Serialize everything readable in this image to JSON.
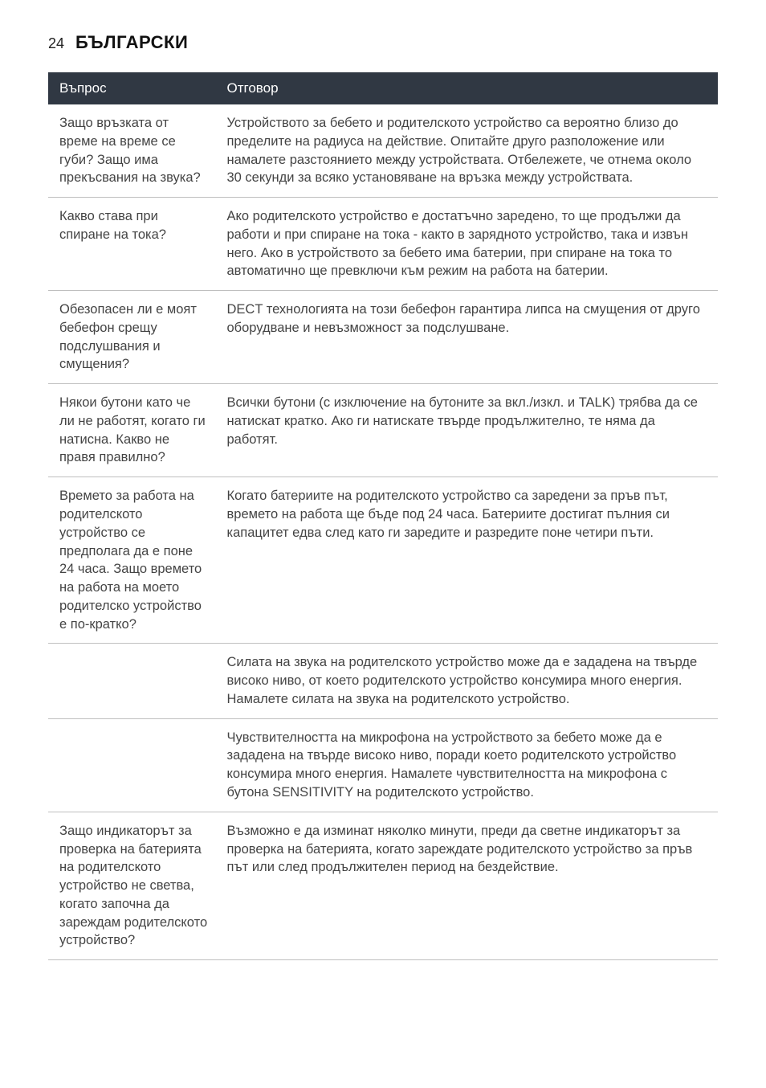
{
  "header": {
    "page_number": "24",
    "title": "БЪЛГАРСКИ"
  },
  "table": {
    "columns": [
      "Въпрос",
      "Отговор"
    ],
    "rows": [
      {
        "q": "Защо връзката от време на време се губи? Защо има прекъсвания на звука?",
        "a": "Устройството за бебето и родителското устройство са вероятно близо до пределите на радиуса на действие. Опитайте друго разположение или намалете разстоянието между устройствата. Отбележете, че отнема около 30 секунди за всяко установяване на връзка между устройствата."
      },
      {
        "q": "Какво става при спиране на тока?",
        "a": "Ако родителското устройство е достатъчно заредено, то ще продължи да работи и при спиране на тока - както в зарядното устройство, така и извън него. Ако в устройството за бебето има батерии, при спиране на тока то автоматично ще превключи към режим на работа на батерии."
      },
      {
        "q": "Обезопасен ли е моят бебефон срещу подслушвания и смущения?",
        "a": "DECT технологията на този бебефон гарантира липса на смущения от друго оборудване и невъзможност за подслушване."
      },
      {
        "q": "Някои бутони като че ли не работят, когато ги натисна. Какво не правя правилно?",
        "a": "Всички бутони (с изключение на бутоните за вкл./изкл. и TALK) трябва да се натискат кратко. Ако ги натискате твърде продължително, те няма да работят."
      },
      {
        "q": "Времето за работа на родителското устройство се предполага да е поне 24 часа. Защо времето на работа на моето родителско устройство е по-кратко?",
        "a": "Когато батериите на родителското устройство са заредени за пръв път, времето на работа ще бъде под 24 часа. Батериите достигат пълния си капацитет едва след като ги заредите и разредите поне четири пъти."
      },
      {
        "q": "",
        "a": "Силата на звука на родителското устройство може да е зададена на твърде високо ниво, от което родителското устройство консумира много енергия. Намалете силата на звука на родителското устройство."
      },
      {
        "q": "",
        "a": "Чувствителността на микрофона на устройството за бебето може да е зададена на твърде високо ниво, поради което родителското устройство консумира много енергия. Намалете чувствителността на микрофона с бутона SENSITIVITY на родителското устройство."
      },
      {
        "q": "Защо индикаторът за проверка на батерията на родителското устройство не светва, когато започна да зареждам родителското устройство?",
        "a": "Възможно е да изминат няколко минути, преди да светне индикаторът за проверка на батерията, когато зареждате родителското устройство за пръв път или след продължителен период на бездействие."
      }
    ]
  },
  "style": {
    "header_bg": "#303843",
    "header_text": "#ffffff",
    "body_text": "#444444",
    "border_color": "#bfbfbf",
    "page_bg": "#ffffff",
    "title_fontsize": 22,
    "body_fontsize": 16.5,
    "col0_width_pct": 25,
    "col1_width_pct": 75
  }
}
